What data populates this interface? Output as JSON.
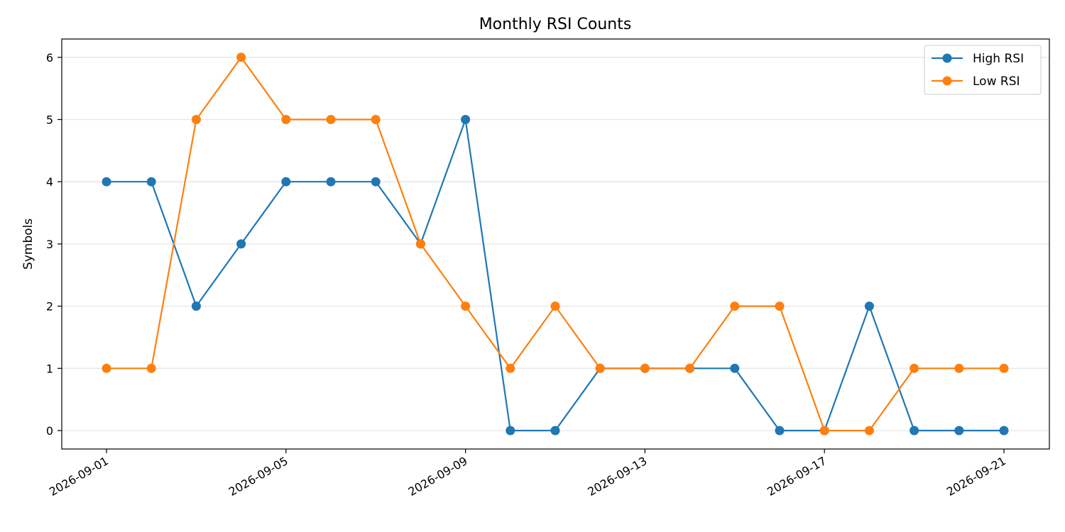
{
  "chart_data": {
    "type": "line",
    "title": "Monthly RSI Counts",
    "xlabel": "",
    "ylabel": "Symbols",
    "x": [
      "2026-09-01",
      "2026-09-02",
      "2026-09-03",
      "2026-09-04",
      "2026-09-05",
      "2026-09-06",
      "2026-09-07",
      "2026-09-08",
      "2026-09-09",
      "2026-09-10",
      "2026-09-11",
      "2026-09-12",
      "2026-09-13",
      "2026-09-14",
      "2026-09-15",
      "2026-09-16",
      "2026-09-17",
      "2026-09-18",
      "2026-09-19",
      "2026-09-20",
      "2026-09-21"
    ],
    "x_ticks": [
      "2026-09-01",
      "2026-09-05",
      "2026-09-09",
      "2026-09-13",
      "2026-09-17",
      "2026-09-21"
    ],
    "ylim": [
      -0.3,
      6.3
    ],
    "y_ticks": [
      0,
      1,
      2,
      3,
      4,
      5,
      6
    ],
    "grid": "horizontal",
    "legend_position": "top-right",
    "series": [
      {
        "name": "High RSI",
        "color": "#1f77b4",
        "values": [
          4,
          4,
          2,
          3,
          4,
          4,
          4,
          3,
          5,
          0,
          0,
          1,
          1,
          1,
          1,
          0,
          0,
          2,
          0,
          0,
          0
        ]
      },
      {
        "name": "Low RSI",
        "color": "#ff7f0e",
        "values": [
          1,
          1,
          5,
          6,
          5,
          5,
          5,
          3,
          2,
          1,
          2,
          1,
          1,
          1,
          2,
          2,
          0,
          0,
          1,
          1,
          1
        ]
      }
    ]
  }
}
